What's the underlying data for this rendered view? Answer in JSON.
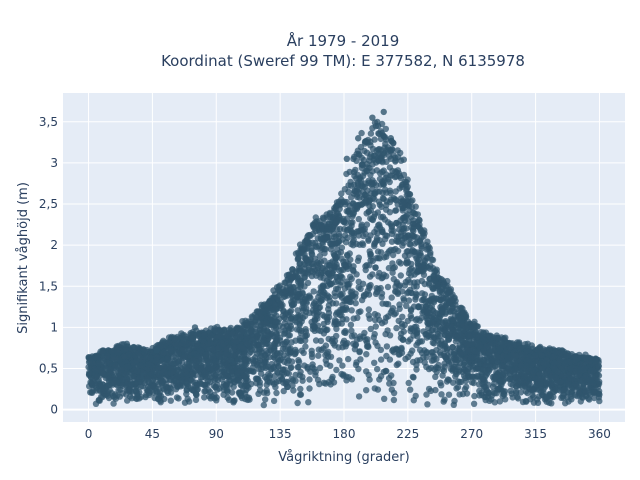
{
  "chart_data": {
    "type": "scatter",
    "title_lines": [
      "År 1979 - 2019",
      "Koordinat (Sweref 99 TM): E 377582, N 6135978"
    ],
    "xlabel": "Vågriktning (grader)",
    "ylabel": "Signifikant våghöjd (m)",
    "xlim": [
      -18,
      378
    ],
    "ylim": [
      -0.15,
      3.85
    ],
    "x_ticks": [
      0,
      45,
      90,
      135,
      180,
      225,
      270,
      315,
      360
    ],
    "x_tick_labels": [
      "0",
      "45",
      "90",
      "135",
      "180",
      "225",
      "270",
      "315",
      "360"
    ],
    "y_ticks": [
      0,
      0.5,
      1,
      1.5,
      2,
      2.5,
      3,
      3.5
    ],
    "y_tick_labels": [
      "0",
      "0,5",
      "1",
      "1,5",
      "2",
      "2,5",
      "3",
      "3,5"
    ],
    "grid": true,
    "legend": "none",
    "marker_color": "#30566e",
    "background_color": "#e5ecf6",
    "envelope": {
      "description_of_upper_bound_by_direction": "upper bound of significant wave height vs direction",
      "x": [
        0,
        20,
        45,
        60,
        90,
        100,
        110,
        120,
        130,
        140,
        150,
        160,
        170,
        180,
        190,
        200,
        205,
        210,
        220,
        230,
        240,
        250,
        260,
        270,
        280,
        300,
        315,
        330,
        345,
        360
      ],
      "y_max": [
        0.65,
        0.82,
        0.76,
        0.93,
        1.02,
        1.0,
        1.1,
        1.25,
        1.45,
        1.7,
        2.1,
        2.4,
        2.5,
        2.85,
        3.35,
        3.55,
        3.65,
        3.5,
        3.2,
        2.6,
        2.05,
        1.65,
        1.35,
        1.1,
        0.95,
        0.85,
        0.78,
        0.75,
        0.68,
        0.65
      ]
    },
    "outliers": [
      {
        "x": 27,
        "y": 0.8
      },
      {
        "x": 48,
        "y": 0.72
      },
      {
        "x": 75,
        "y": 1.0
      },
      {
        "x": 200,
        "y": 3.55
      },
      {
        "x": 208,
        "y": 3.62
      },
      {
        "x": 204,
        "y": 3.45
      },
      {
        "x": 190,
        "y": 3.3
      },
      {
        "x": 182,
        "y": 3.05
      },
      {
        "x": 213,
        "y": 3.3
      }
    ]
  }
}
